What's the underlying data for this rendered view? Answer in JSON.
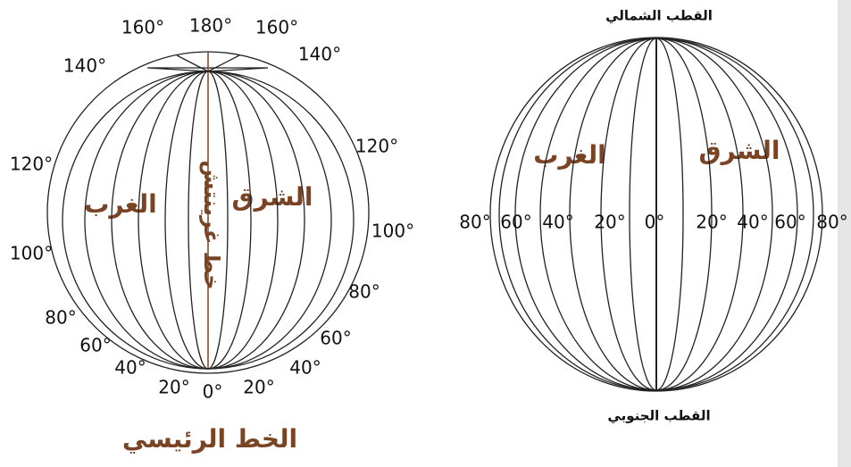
{
  "left_globe": {
    "degree_labels": [
      "160°",
      "180°",
      "160°",
      "140°",
      "140°",
      "120°",
      "120°",
      "100°",
      "100°",
      "80°",
      "80°",
      "60°",
      "60°",
      "40°",
      "40°",
      "20°",
      "0°",
      "20°"
    ],
    "west": "الغرب",
    "east": "الشرق",
    "meridian_label": "خط غرينتش",
    "caption": "الخط الرئيسي"
  },
  "right_globe": {
    "north_pole": "القطب الشمالي",
    "south_pole": "القطب الجنوبي",
    "west": "الغرب",
    "east": "الشرق",
    "degree_labels": [
      "80°",
      "60°",
      "40°",
      "20°",
      "0°",
      "20°",
      "40°",
      "60°",
      "80°"
    ]
  }
}
